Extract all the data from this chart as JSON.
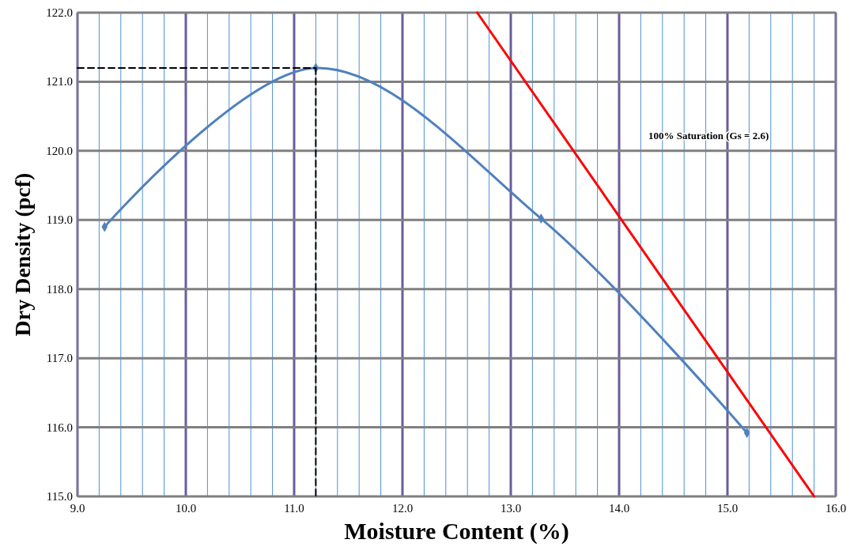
{
  "chart_data": {
    "type": "line",
    "xlabel": "Moisture Content (%)",
    "ylabel": "Dry Density (pcf)",
    "xlim": [
      9.0,
      16.0
    ],
    "ylim": [
      115.0,
      122.0
    ],
    "xticks": [
      {
        "value": 9,
        "label": "9.0"
      },
      {
        "value": 9.2,
        "label": null
      },
      {
        "value": 9.4,
        "label": null
      },
      {
        "value": 9.6,
        "label": null
      },
      {
        "value": 9.8,
        "label": null
      },
      {
        "value": 10,
        "label": "10.0"
      },
      {
        "value": 10.2,
        "label": null
      },
      {
        "value": 10.4,
        "label": null
      },
      {
        "value": 10.6,
        "label": null
      },
      {
        "value": 10.8,
        "label": null
      },
      {
        "value": 11,
        "label": "11.0"
      },
      {
        "value": 11.2,
        "label": null
      },
      {
        "value": 11.4,
        "label": null
      },
      {
        "value": 11.6,
        "label": null
      },
      {
        "value": 11.8,
        "label": null
      },
      {
        "value": 12,
        "label": "12.0"
      },
      {
        "value": 12.2,
        "label": null
      },
      {
        "value": 12.4,
        "label": null
      },
      {
        "value": 12.6,
        "label": null
      },
      {
        "value": 12.8,
        "label": null
      },
      {
        "value": 13,
        "label": "13.0"
      },
      {
        "value": 13.2,
        "label": null
      },
      {
        "value": 13.4,
        "label": null
      },
      {
        "value": 13.6,
        "label": null
      },
      {
        "value": 13.8,
        "label": null
      },
      {
        "value": 14,
        "label": "14.0"
      },
      {
        "value": 14.2,
        "label": null
      },
      {
        "value": 14.4,
        "label": null
      },
      {
        "value": 14.6,
        "label": null
      },
      {
        "value": 14.8,
        "label": null
      },
      {
        "value": 15,
        "label": "15.0"
      },
      {
        "value": 15.2,
        "label": null
      },
      {
        "value": 15.4,
        "label": null
      },
      {
        "value": 15.6,
        "label": null
      },
      {
        "value": 15.8,
        "label": null
      },
      {
        "value": 16,
        "label": "16.0"
      }
    ],
    "yticks": [
      {
        "value": 115,
        "label": "115.0"
      },
      {
        "value": 116,
        "label": "116.0"
      },
      {
        "value": 117,
        "label": "117.0"
      },
      {
        "value": 118,
        "label": "118.0"
      },
      {
        "value": 119,
        "label": "119.0"
      },
      {
        "value": 120,
        "label": "120.0"
      },
      {
        "value": 121,
        "label": "121.0"
      },
      {
        "value": 122,
        "label": "122.0"
      }
    ],
    "grid": true,
    "series": [
      {
        "color": "#4f81bd",
        "x": [
          9.25,
          11.2,
          13.28,
          15.18
        ],
        "values": [
          118.9,
          121.2,
          119.02,
          115.92
        ],
        "marker": "diamond",
        "line_style": "solid"
      },
      {
        "color": "#ff0000",
        "x": [
          12.69,
          15.8
        ],
        "values": [
          122.0,
          115.0
        ],
        "marker": "none",
        "line_style": "solid"
      },
      {
        "color": "#000000",
        "x": [
          9.0,
          11.2
        ],
        "values": [
          121.2,
          121.2
        ],
        "marker": "none",
        "line_style": "dashed"
      },
      {
        "color": "#000000",
        "x": [
          11.2,
          11.2
        ],
        "values": [
          121.2,
          115.0
        ],
        "marker": "none",
        "line_style": "dashed"
      }
    ],
    "annotations": [
      "100% Saturation (Gs = 2.6)"
    ]
  }
}
